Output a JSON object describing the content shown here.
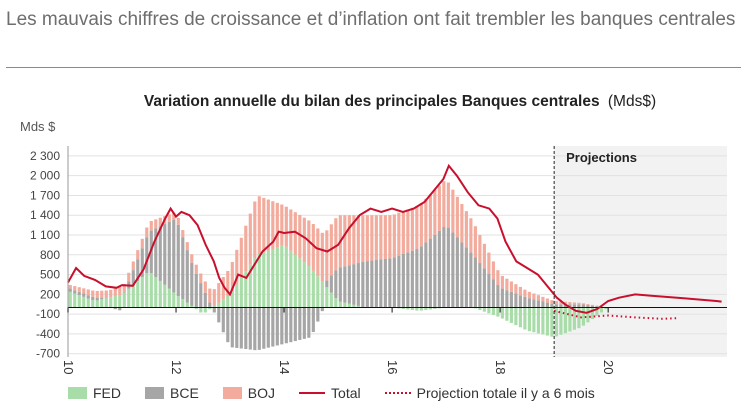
{
  "header": {
    "title": "Les mauvais chiffres de croissance et d’inflation ont fait trembler les banques centrales"
  },
  "legend": {
    "fed": "FED",
    "bce": "BCE",
    "boj": "BOJ",
    "total": "Total",
    "projection": "Projection totale il y a 6 mois"
  },
  "colors": {
    "fed": "#a8dca8",
    "bce": "#a6a6a6",
    "boj": "#f2ab9c",
    "total": "#c8102e",
    "projection_bg": "#f2f2f2"
  },
  "chart_data": {
    "type": "bar",
    "title": "Variation annuelle du bilan des principales Banques centrales",
    "title_unit": "(Mds$)",
    "ylabel": "Mds $",
    "ylim": [
      -750,
      2450
    ],
    "xlim": [
      10,
      22.2
    ],
    "yticks": [
      2300,
      2000,
      1700,
      1400,
      1100,
      800,
      500,
      200,
      -100,
      -400,
      -700
    ],
    "ytick_labels": [
      "2 300",
      "2 000",
      "1 700",
      "1 400",
      "1 100",
      "800",
      "500",
      "200",
      "-100",
      "-400",
      "-700"
    ],
    "xticks": [
      10,
      12,
      14,
      16,
      18,
      20
    ],
    "xtick_labels": [
      "10",
      "12",
      "14",
      "16",
      "18",
      "20"
    ],
    "projection_start": 19.0,
    "projection_label": "Projections",
    "series": [
      {
        "name": "FED",
        "x": [
          10,
          10.5,
          11,
          11.5,
          12,
          12.5,
          13,
          13.5,
          14,
          14.5,
          15,
          15.5,
          16,
          16.5,
          17,
          17.5,
          18,
          18.5,
          19,
          19.5,
          20
        ],
        "values": [
          250,
          100,
          200,
          550,
          200,
          -100,
          200,
          800,
          950,
          600,
          100,
          0,
          0,
          -50,
          0,
          0,
          -150,
          -350,
          -450,
          -300,
          0
        ]
      },
      {
        "name": "BCE",
        "x": [
          10,
          10.5,
          11,
          11.5,
          12,
          12.5,
          13,
          13.5,
          14,
          14.5,
          15,
          15.5,
          16,
          16.5,
          17,
          17.5,
          18,
          18.5,
          19,
          19.5,
          20
        ],
        "values": [
          50,
          50,
          -50,
          600,
          1150,
          300,
          -600,
          -650,
          -550,
          -450,
          500,
          700,
          750,
          900,
          1250,
          800,
          300,
          150,
          50,
          50,
          0
        ]
      },
      {
        "name": "BOJ",
        "x": [
          10,
          10.5,
          11,
          11.5,
          12,
          12.5,
          13,
          13.5,
          14,
          14.5,
          15,
          15.5,
          16,
          16.5,
          17,
          17.5,
          18,
          18.5,
          19,
          19.5,
          20
        ],
        "values": [
          50,
          100,
          120,
          150,
          100,
          150,
          400,
          900,
          600,
          700,
          800,
          700,
          650,
          650,
          700,
          500,
          200,
          100,
          50,
          20,
          0
        ]
      },
      {
        "name": "Total",
        "type": "line",
        "x": [
          10,
          10.15,
          10.3,
          10.5,
          10.7,
          10.9,
          11.0,
          11.2,
          11.4,
          11.6,
          11.8,
          11.9,
          12.0,
          12.1,
          12.25,
          12.4,
          12.55,
          12.7,
          12.8,
          12.9,
          13.0,
          13.15,
          13.3,
          13.45,
          13.6,
          13.8,
          13.9,
          14.0,
          14.2,
          14.4,
          14.6,
          14.8,
          15.0,
          15.2,
          15.4,
          15.6,
          15.8,
          16.0,
          16.2,
          16.4,
          16.6,
          16.8,
          16.95,
          17.05,
          17.2,
          17.4,
          17.6,
          17.8,
          17.95,
          18.1,
          18.3,
          18.5,
          18.7,
          18.9,
          19.05,
          19.2,
          19.4,
          19.6,
          19.8,
          20.0,
          20.2,
          20.5,
          20.8,
          21.1,
          21.4,
          21.7,
          22.0,
          22.1
        ],
        "values": [
          380,
          600,
          480,
          420,
          320,
          300,
          340,
          330,
          580,
          1000,
          1350,
          1500,
          1380,
          1450,
          1400,
          1250,
          950,
          700,
          450,
          300,
          200,
          500,
          450,
          650,
          850,
          1000,
          1150,
          1130,
          1150,
          1050,
          900,
          850,
          950,
          1200,
          1400,
          1500,
          1450,
          1500,
          1450,
          1500,
          1600,
          1800,
          1950,
          2150,
          2000,
          1750,
          1550,
          1500,
          1350,
          1000,
          700,
          600,
          500,
          300,
          150,
          50,
          -50,
          -80,
          -20,
          100,
          150,
          200,
          180,
          160,
          140,
          120,
          100,
          90
        ]
      },
      {
        "name": "Projection totale il y a 6 mois",
        "type": "line",
        "x": [
          19.0,
          19.5,
          20.0,
          20.5,
          21.0,
          21.3
        ],
        "values": [
          -50,
          -150,
          -120,
          -150,
          -170,
          -160
        ]
      }
    ]
  }
}
